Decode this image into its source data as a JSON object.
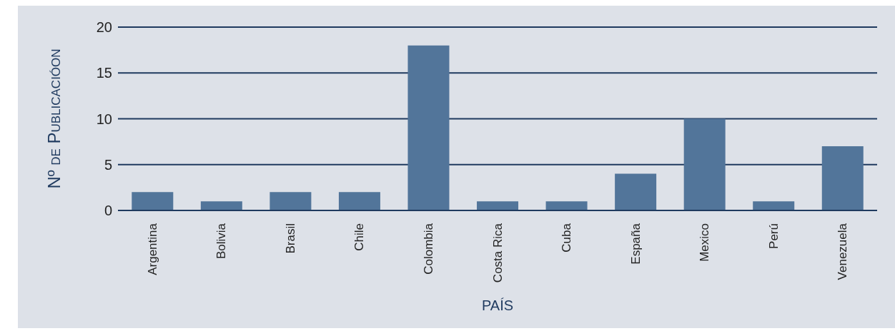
{
  "chart_data": {
    "type": "bar",
    "xlabel": "PAÍS",
    "ylabel": "Nº de Publicacióon",
    "categories": [
      "Argentina",
      "Bolivia",
      "Brasil",
      "Chile",
      "Colombia",
      "Costa Rica",
      "Cuba",
      "España",
      "Mexico",
      "Perú",
      "Venezuela"
    ],
    "values": [
      2,
      1,
      2,
      2,
      18,
      1,
      1,
      4,
      10,
      1,
      7
    ],
    "color": "#52759a",
    "ylim": [
      0,
      20
    ],
    "yticks": [
      0,
      5,
      10,
      15,
      20
    ],
    "grid": "y"
  }
}
